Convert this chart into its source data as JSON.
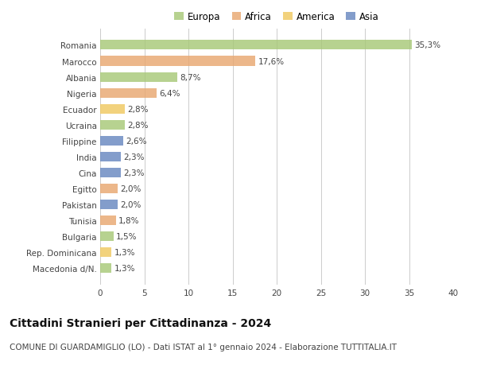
{
  "countries": [
    "Romania",
    "Marocco",
    "Albania",
    "Nigeria",
    "Ecuador",
    "Ucraina",
    "Filippine",
    "India",
    "Cina",
    "Egitto",
    "Pakistan",
    "Tunisia",
    "Bulgaria",
    "Rep. Dominicana",
    "Macedonia d/N."
  ],
  "values": [
    35.3,
    17.6,
    8.7,
    6.4,
    2.8,
    2.8,
    2.6,
    2.3,
    2.3,
    2.0,
    2.0,
    1.8,
    1.5,
    1.3,
    1.3
  ],
  "labels": [
    "35,3%",
    "17,6%",
    "8,7%",
    "6,4%",
    "2,8%",
    "2,8%",
    "2,6%",
    "2,3%",
    "2,3%",
    "2,0%",
    "2,0%",
    "1,8%",
    "1,5%",
    "1,3%",
    "1,3%"
  ],
  "continents": [
    "Europa",
    "Africa",
    "Europa",
    "Africa",
    "America",
    "Europa",
    "Asia",
    "Asia",
    "Asia",
    "Africa",
    "Asia",
    "Africa",
    "Europa",
    "America",
    "Europa"
  ],
  "continent_colors": {
    "Europa": "#a8c878",
    "Africa": "#e8a870",
    "America": "#f0c860",
    "Asia": "#6888c0"
  },
  "legend_order": [
    "Europa",
    "Africa",
    "America",
    "Asia"
  ],
  "title": "Cittadini Stranieri per Cittadinanza - 2024",
  "subtitle": "COMUNE DI GUARDAMIGLIO (LO) - Dati ISTAT al 1° gennaio 2024 - Elaborazione TUTTITALIA.IT",
  "xlim": [
    0,
    40
  ],
  "xticks": [
    0,
    5,
    10,
    15,
    20,
    25,
    30,
    35,
    40
  ],
  "background_color": "#ffffff",
  "grid_color": "#cccccc",
  "bar_height": 0.6,
  "label_fontsize": 7.5,
  "tick_fontsize": 7.5,
  "legend_fontsize": 8.5,
  "title_fontsize": 10,
  "subtitle_fontsize": 7.5,
  "bar_alpha": 0.82
}
